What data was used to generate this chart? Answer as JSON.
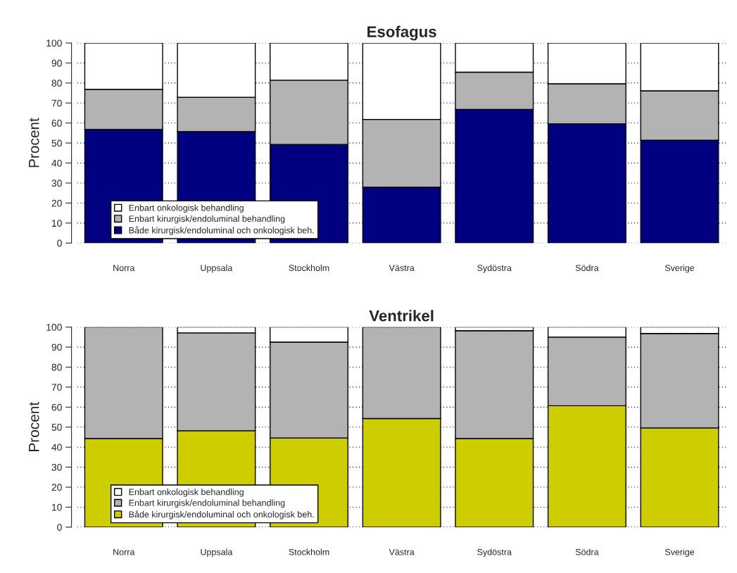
{
  "chart_data": [
    {
      "type": "bar",
      "title": "Esofagus",
      "ylabel": "Procent",
      "stacked": true,
      "categories": [
        "Norra",
        "Uppsala",
        "Stockholm",
        "Västra",
        "Sydöstra",
        "Södra",
        "Sverige"
      ],
      "series": [
        {
          "name": "Både kirurgisk/endoluminal och onkologisk beh.",
          "color": "#000080",
          "values": [
            56.8,
            55.7,
            49.3,
            27.9,
            66.8,
            59.6,
            51.4
          ]
        },
        {
          "name": "Enbart kirurgisk/endoluminal behandling",
          "color": "#b3b3b3",
          "values": [
            20.0,
            17.2,
            32.1,
            33.9,
            18.6,
            20.0,
            24.7
          ]
        },
        {
          "name": "Enbart onkologisk behandling",
          "color": "#ffffff",
          "values": [
            23.2,
            27.1,
            18.6,
            38.2,
            14.6,
            20.4,
            23.9
          ]
        }
      ],
      "ylim": [
        0,
        100
      ],
      "yticks": [
        0,
        10,
        20,
        30,
        40,
        50,
        60,
        70,
        80,
        90,
        100
      ],
      "grid": "y",
      "legend": "bottom left"
    },
    {
      "type": "bar",
      "title": "Ventrikel",
      "ylabel": "Procent",
      "stacked": true,
      "categories": [
        "Norra",
        "Uppsala",
        "Stockholm",
        "Västra",
        "Sydöstra",
        "Södra",
        "Sverige"
      ],
      "series": [
        {
          "name": "Både kirurgisk/endoluminal och onkologisk beh.",
          "color": "#cdcd00",
          "values": [
            44.3,
            48.2,
            44.6,
            54.3,
            44.3,
            60.7,
            49.6
          ]
        },
        {
          "name": "Enbart kirurgisk/endoluminal behandling",
          "color": "#b3b3b3",
          "values": [
            55.7,
            48.9,
            47.9,
            45.7,
            53.9,
            34.3,
            47.2
          ]
        },
        {
          "name": "Enbart onkologisk behandling",
          "color": "#ffffff",
          "values": [
            null,
            2.9,
            7.5,
            null,
            1.8,
            5.0,
            3.2
          ]
        }
      ],
      "ylim": [
        0,
        100
      ],
      "yticks": [
        0,
        10,
        20,
        30,
        40,
        50,
        60,
        70,
        80,
        90,
        100
      ],
      "grid": "y",
      "legend": "bottom left"
    }
  ]
}
